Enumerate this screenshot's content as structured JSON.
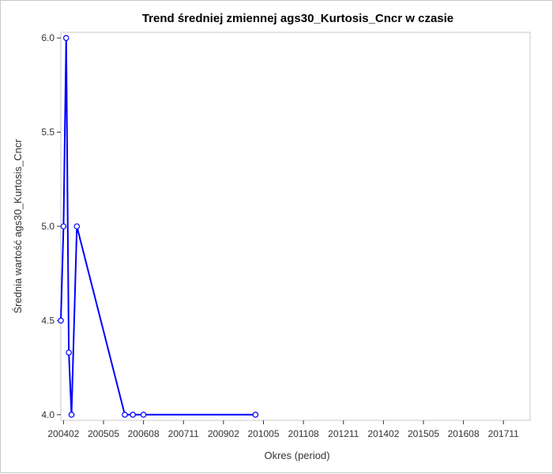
{
  "chart_data": {
    "type": "line",
    "title": "Trend średniej zmiennej ags30_Kurtosis_Cncr w czasie",
    "xlabel": "Okres (period)",
    "ylabel": "Średnia wartość ags30_Kurtosis_Cncr",
    "x_axis_kind": "yyyymm",
    "x_ticks": [
      "200402",
      "200505",
      "200608",
      "200711",
      "200902",
      "201005",
      "201108",
      "201211",
      "201402",
      "201505",
      "201608",
      "201711"
    ],
    "xlim": [
      "200401",
      "201809"
    ],
    "y_ticks": [
      "4.0",
      "4.5",
      "5.0",
      "5.5",
      "6.0"
    ],
    "ylim": [
      3.97,
      6.03
    ],
    "grid": false,
    "legend": "none",
    "series": [
      {
        "x": [
          "200401",
          "200402",
          "200403",
          "200404",
          "200405",
          "200407",
          "200601",
          "200604",
          "200608",
          "201002"
        ],
        "y": [
          4.5,
          5.0,
          6.0,
          4.33,
          4.0,
          5.0,
          4.0,
          4.0,
          4.0,
          4.0
        ],
        "color": "#0000ff"
      }
    ]
  }
}
